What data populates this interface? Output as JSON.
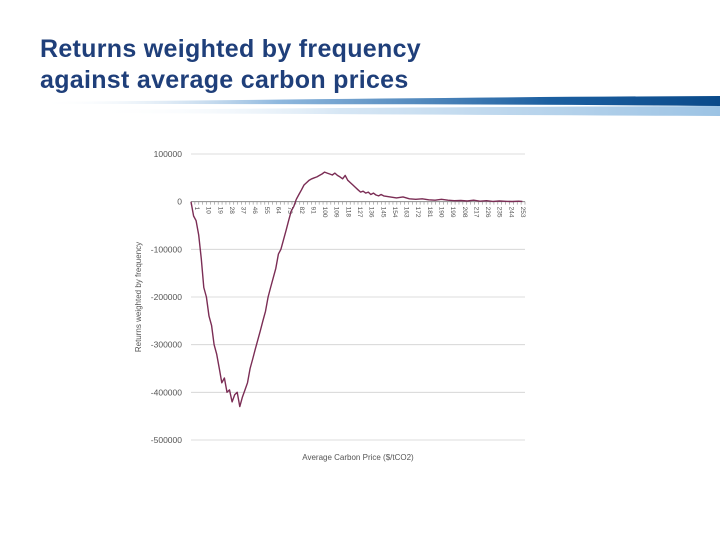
{
  "slide": {
    "title_line1": "Returns weighted by frequency",
    "title_line2": "against average carbon prices",
    "brand_colors": {
      "title": "#1f3f7a",
      "swoosh_dark": "#0a4a8a",
      "swoosh_light": "#9cc3e4"
    }
  },
  "chart_data": {
    "type": "line",
    "title": "",
    "xlabel": "Average Carbon Price ($/tCO2)",
    "ylabel": "Returns weighted by frequency",
    "ylim": [
      -500000,
      100000
    ],
    "yticks": [
      100000,
      0,
      -100000,
      -200000,
      -300000,
      -400000,
      -500000
    ],
    "ytick_labels": [
      "100000",
      "0",
      "-100000",
      "-200000",
      "-300000",
      "-400000",
      "-500000"
    ],
    "xlim": [
      0,
      260
    ],
    "xtick_labels": [
      "1",
      "10",
      "19",
      "28",
      "37",
      "46",
      "55",
      "64",
      "73",
      "82",
      "91",
      "100",
      "109",
      "118",
      "127",
      "136",
      "145",
      "154",
      "163",
      "172",
      "181",
      "190",
      "199",
      "208",
      "217",
      "226",
      "235",
      "244",
      "253"
    ],
    "grid": true,
    "line_color": "#7b2d55",
    "series": [
      {
        "name": "Returns",
        "x": [
          0,
          2,
          4,
          6,
          8,
          10,
          12,
          14,
          16,
          18,
          20,
          22,
          24,
          26,
          28,
          30,
          32,
          34,
          36,
          38,
          40,
          42,
          44,
          46,
          48,
          50,
          52,
          54,
          56,
          58,
          60,
          62,
          64,
          66,
          68,
          70,
          72,
          74,
          76,
          78,
          80,
          82,
          84,
          86,
          88,
          90,
          92,
          94,
          96,
          98,
          100,
          102,
          104,
          106,
          108,
          110,
          112,
          114,
          116,
          118,
          120,
          122,
          124,
          126,
          128,
          130,
          132,
          134,
          136,
          138,
          140,
          142,
          144,
          146,
          148,
          150,
          155,
          160,
          165,
          170,
          175,
          180,
          185,
          190,
          195,
          200,
          205,
          210,
          215,
          220,
          225,
          230,
          235,
          240,
          245,
          250,
          255,
          258
        ],
        "values": [
          0,
          -30000,
          -40000,
          -70000,
          -120000,
          -180000,
          -200000,
          -240000,
          -260000,
          -300000,
          -320000,
          -350000,
          -380000,
          -370000,
          -400000,
          -395000,
          -420000,
          -405000,
          -400000,
          -430000,
          -410000,
          -395000,
          -380000,
          -350000,
          -330000,
          -310000,
          -290000,
          -270000,
          -250000,
          -230000,
          -200000,
          -180000,
          -160000,
          -140000,
          -110000,
          -100000,
          -80000,
          -60000,
          -40000,
          -20000,
          -10000,
          5000,
          15000,
          25000,
          35000,
          40000,
          45000,
          48000,
          50000,
          52000,
          55000,
          58000,
          62000,
          60000,
          58000,
          56000,
          60000,
          55000,
          52000,
          48000,
          55000,
          45000,
          40000,
          35000,
          30000,
          25000,
          20000,
          22000,
          18000,
          20000,
          15000,
          18000,
          14000,
          12000,
          15000,
          12000,
          10000,
          8000,
          10000,
          6000,
          5000,
          6000,
          4000,
          3000,
          5000,
          3000,
          2000,
          2500,
          1500,
          3000,
          1000,
          2000,
          500,
          1500,
          800,
          300,
          1000,
          500
        ]
      }
    ]
  }
}
